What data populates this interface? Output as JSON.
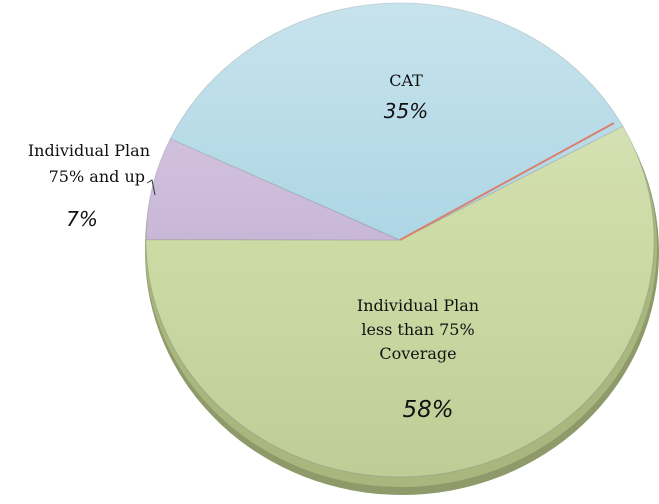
{
  "chart_data": {
    "type": "pie",
    "title": "",
    "slices": [
      {
        "label_lines": [
          "CAT"
        ],
        "percent_label": "35%",
        "value": 35,
        "color": "#a9d4e3"
      },
      {
        "label_lines": [
          "Individual Plan",
          "less than 75%",
          "Coverage"
        ],
        "percent_label": "58%",
        "value": 58,
        "color": "#cad9a0"
      },
      {
        "label_lines": [
          "Individual Plan",
          "75% and up"
        ],
        "percent_label": "7%",
        "value": 7,
        "color": "#c6b3d6"
      }
    ],
    "style": "3d"
  }
}
